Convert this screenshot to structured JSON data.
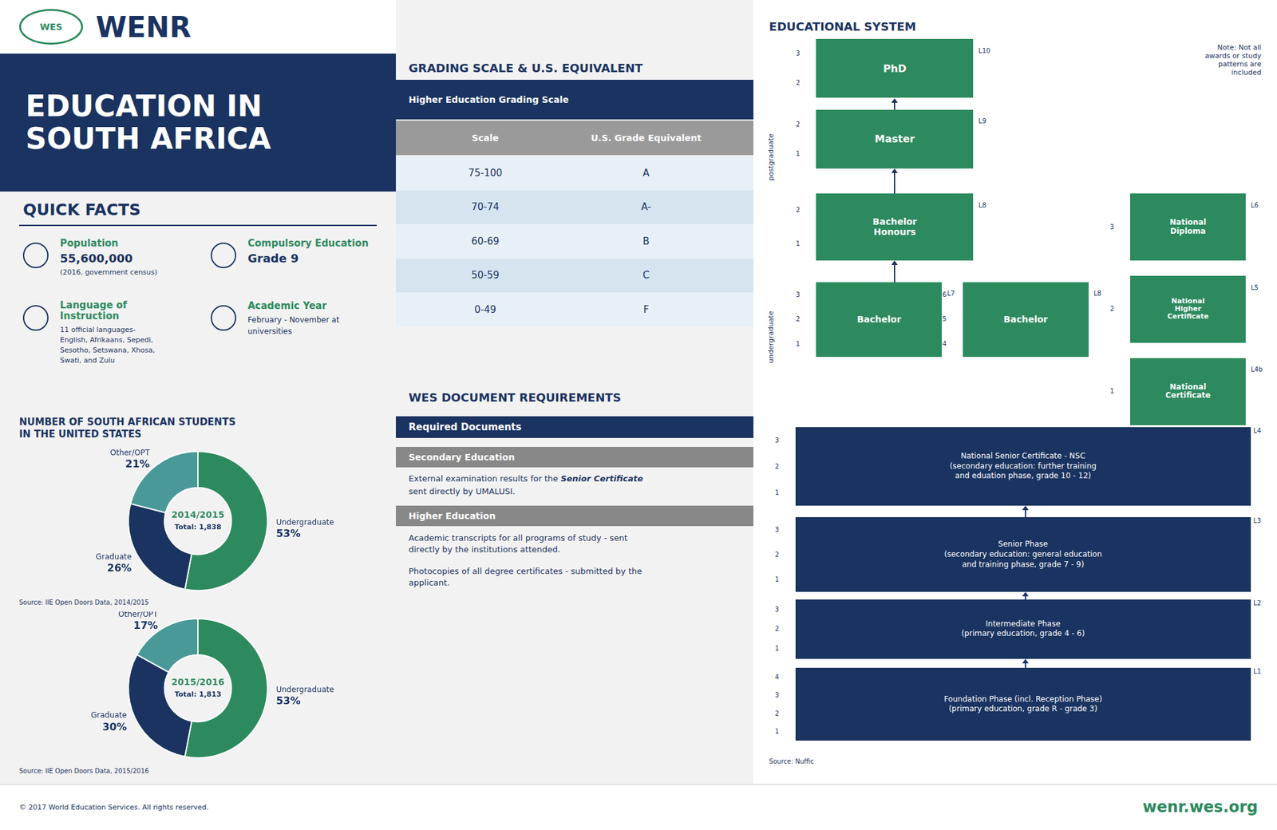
{
  "chart_data": [
    {
      "type": "pie",
      "title": "2014/2015",
      "subtitle": "Total: 1,838",
      "categories": [
        "Undergraduate",
        "Graduate",
        "Other/OPT"
      ],
      "values": [
        53,
        26,
        21
      ],
      "value_labels": [
        "53%",
        "26%",
        "21%"
      ],
      "colors": [
        "#2d8a5e",
        "#1a3360",
        "#4a9999"
      ],
      "data_labels": true,
      "annotations": [
        "WES",
        "WENR",
        "EDUCATION IN\nSOUTH AFRICA",
        "QUICK FACTS",
        "Population",
        "55,600,000",
        "(2016, government census)",
        "Compulsory Education",
        "Grade 9",
        "Language of\nInstruction",
        "11 official languages-",
        "English, Afrikaans, Sepedi,",
        "Sesotho, Setswana, Xhosa,",
        "Swati, and Zulu",
        "Academic Year",
        "February - November at",
        "universities",
        "NUMBER OF SOUTH AFRICAN STUDENTS\nIN THE UNITED STATES",
        "Source: IIE Open Doors Data, 2014/2015",
        "© 2017 World Education Services. All rights reserved.",
        "wenr.wes.org",
        "GRADING SCALE & U.S. EQUIVALENT",
        "Higher Education Grading Scale",
        "Scale",
        "U.S. Grade Equivalent",
        "75-100",
        "A",
        "70-74",
        "A-",
        "60-69",
        "B",
        "50-59",
        "C",
        "0-49",
        "F",
        "WES DOCUMENT REQUIREMENTS",
        "Required Documents",
        "Secondary Education",
        "External examination results for the ",
        "Senior Certificate",
        "sent directly by UMALUSI.",
        "Higher Education",
        "Academic transcripts for all programs of study - sent\ndirectly by the institutions attended.",
        "Photocopies of all degree certificates - submitted by the\napplicant.",
        "EDUCATIONAL SYSTEM",
        "Note: Not all\nawards or study\npatterns are\nincluded",
        "postgraduate",
        "undergraduate",
        "PhD",
        "L10",
        "3",
        "2",
        "Master",
        "L9",
        "2",
        "1",
        "Bachelor\nHonours",
        "L8",
        "2",
        "1",
        "Bachelor",
        "L7",
        "3",
        "2",
        "1",
        "Bachelor",
        "L8",
        "6",
        "5",
        "4",
        "National\nDiploma",
        "L6",
        "3",
        "National\nHigher\nCertificate",
        "L5",
        "2",
        "National\nCertificate",
        "L4b",
        "1",
        "National Senior Certificate - NSC\n(secondary education: further training\nand eduation phase, grade 10 - 12)",
        "L4",
        "3",
        "2",
        "1",
        "Senior Phase\n(secondary education: general education\nand training phase, grade 7 - 9)",
        "L3",
        "3",
        "2",
        "1",
        "Intermediate Phase\n(primary education, grade 4 - 6)",
        "L2",
        "3",
        "2",
        "1",
        "Foundation Phase (incl. Reception Phase)\n(primary education, grade R - grade 3)",
        "L1",
        "4",
        "3",
        "2",
        "1",
        "Source: Nuffic"
      ]
    },
    {
      "type": "pie",
      "title": "2015/2016",
      "subtitle": "Total: 1,813",
      "categories": [
        "Undergraduate",
        "Graduate",
        "Other/OPT"
      ],
      "values": [
        53,
        30,
        17
      ],
      "value_labels": [
        "53%",
        "30%",
        "17%"
      ],
      "colors": [
        "#2d8a5e",
        "#1a3360",
        "#4a9999"
      ],
      "data_labels": true,
      "annotations": [
        "Source: IIE Open Doors Data, 2015/2016"
      ]
    }
  ]
}
